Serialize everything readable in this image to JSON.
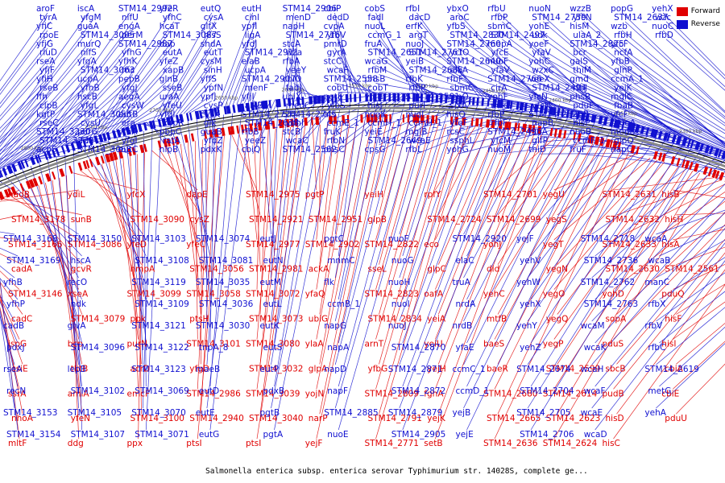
{
  "caption": "Salmonella enterica subsp. enterica serovar Typhimurium str. 14028S, complete ge...",
  "legend": [
    {
      "label": "Forward",
      "color": "#e00000"
    },
    {
      "label": "Reverse",
      "color": "#1010d0"
    }
  ],
  "colors": {
    "forward": "#e00000",
    "reverse": "#1010d0"
  },
  "axis": {
    "range_kbp": [
      2200,
      2900
    ],
    "tick_labels": [
      "2900 kbp",
      "2850 kbp",
      "2800 kbp",
      "2750 kbp",
      "2700 kbp",
      "2650 kbp",
      "2600 kbp",
      "2550 kbp",
      "2500 kbp",
      "2450 kbp",
      "2400 kbp",
      "2350 kbp",
      "2300 kbp",
      "2250 kbp",
      "2200 kbp"
    ]
  },
  "reverse_genes": [
    "aroF",
    "tyrA",
    "yfiC",
    "rpoE",
    "yfjG",
    "rluD",
    "rseA",
    "yfjF",
    "yfiH",
    "rseB",
    "ffh",
    "clpB",
    "kgtP",
    "rseC",
    "STM14_3230",
    "STM14_3228",
    "acpS",
    "iscA",
    "yfgM",
    "guaA",
    "STM14_3005",
    "murQ",
    "nifS",
    "yfgA",
    "STM14_3063",
    "ucpA",
    "yfhB",
    "hscB",
    "yfgL",
    "STM14_3055",
    "cysU",
    "purG",
    "fdx",
    "STM14_3068",
    "STM14_2992",
    "nifU",
    "engA",
    "perM",
    "STM14_2987",
    "yfhG",
    "yfhK",
    "rnc",
    "pepB",
    "yfgJ",
    "aegA",
    "cysW",
    "eutB",
    "era",
    "yfhA",
    "yfgI",
    "eutC",
    "yfeR",
    "yfhC",
    "hcaT",
    "STM14_3087",
    "dap",
    "eutA",
    "yfeZ",
    "xapB",
    "glnB",
    "sseB",
    "uraA",
    "yfeU",
    "yfgI",
    "xapR",
    "pbpC",
    "ratA",
    "nlpB",
    "eutQ",
    "cysA",
    "glfX",
    "hisS",
    "shdA",
    "eutT",
    "cysM",
    "sinH",
    "yffS",
    "ypfN",
    "ypfJ",
    "cysP",
    "cysK",
    "glk",
    "guaB",
    "yfdZ",
    "pdxK",
    "eutH",
    "cinl",
    "ypfI",
    "ligA",
    "yfdJ",
    "STM14_2911",
    "elaB",
    "ucpA",
    "STM14_2907",
    "menF",
    "yfjI",
    "alkB",
    "STM14_2726",
    "STM14_2638",
    "rfbB",
    "yeeZ",
    "cbiQ",
    "STM14_2906",
    "menD",
    "napH",
    "STM14_2716",
    "stcA",
    "wza",
    "rfbA",
    "yeeY",
    "cbiO",
    "fadJ",
    "ubiX",
    "menC",
    "STM14_2745",
    "yohI",
    "stcB",
    "wcaC",
    "STM14_2562",
    "cbiP",
    "dedD",
    "cvpA",
    "yfbV",
    "pmrD",
    "gyrA",
    "stcC",
    "wcaF",
    "STM14_2558",
    "cobU",
    "pgtE",
    "yfbS",
    "ais",
    "ccmE_1",
    "fruK",
    "rfbN",
    "phsC",
    "cobS",
    "fadI",
    "nuoL",
    "ccmG_1",
    "fruA",
    "STM14_2651",
    "wcaG",
    "rfbM",
    "phsB",
    "cobT",
    "yfcB",
    "hisJ",
    "nuoK",
    "ccmH_1",
    "yeiE",
    "STM14_2649",
    "cpsG",
    "rfbI",
    "dacD",
    "erfK",
    "argT",
    "nuoJ",
    "STM14_2761",
    "yeiB",
    "STM14_2635",
    "rfbK",
    "rfbP",
    "STM14_2501",
    "purF",
    "nuoI",
    "ccmH_1",
    "mglB",
    "wcaE",
    "rfbL",
    "ybxO",
    "aroC",
    "yfbS",
    "STM14_2830",
    "STM14_2760",
    "ycfO",
    "STM14_2640",
    "alkA",
    "rfbF",
    "sbmC",
    "veeO",
    "sixA",
    "hisQ",
    "yfeF",
    "rcsC",
    "ssphL",
    "yohG",
    "rfbU",
    "rfbP",
    "sbmC",
    "STM14_2497",
    "mepA",
    "yfcE",
    "nuoF",
    "yfaV",
    "STM14_2766",
    "cirA",
    "yohF",
    "udk",
    "rfbP",
    "rfbF",
    "STM14_2496",
    "yfcM",
    "nuoM",
    "nuoN",
    "STM14_2759",
    "yohE",
    "udk",
    "yoeF",
    "yfaV",
    "yohC",
    "wzxC",
    "veeX",
    "STM14_2494",
    "yfcN",
    "yfcN",
    "STM14_2826",
    "napB",
    "rsuA",
    "glfP",
    "thiD",
    "wzzB",
    "yfcN",
    "hisM",
    "ulaA_2",
    "STM14_2825",
    "bcr",
    "galS",
    "thiM",
    "gmd",
    "rfbJ",
    "phsB",
    "pduF",
    "fabB",
    "hisP",
    "nuoB",
    "ccmF_1",
    "fruF",
    "popG",
    "STM14_2637",
    "wzb",
    "rfbH",
    "yfcF",
    "ncfA",
    "yfbB",
    "gInP",
    "ccmA_1",
    "yeiK",
    "mglC",
    "fbaB",
    "yfcF",
    "nuoA",
    "menB",
    "glpQ",
    "napC",
    "yehX",
    "wzc",
    "nuoC",
    "rfbD"
  ],
  "forward_genes": [
    "nadB",
    "STM14_3178",
    "STM14_3166",
    "cadA",
    "STM14_3146",
    "cadC",
    "ispG",
    "csiE",
    "ssrA",
    "nhoA",
    "mltF",
    "ydiL",
    "sunB",
    "STM14_3086",
    "gcvR",
    "xseA",
    "STM14_3079",
    "bcp",
    "tktB",
    "amiA",
    "yfeN",
    "ddg",
    "yfcX",
    "STM14_3090",
    "yfeD",
    "hmpA",
    "STM14_3099",
    "ppk",
    "purN",
    "acrD",
    "emcF",
    "STM14_3100",
    "ppx",
    "dapE",
    "cysZ",
    "yfeC",
    "STM14_3056",
    "STM14_3058",
    "ptsH",
    "STM14_3101",
    "yfgD",
    "STM14_2986",
    "STM14_2940",
    "ptsI",
    "STM14_2975",
    "STM14_2921",
    "STM14_2977",
    "STM14_2981",
    "STM14_3072",
    "STM14_3073",
    "STM14_3080",
    "STM14_3032",
    "STM14_3039",
    "STM14_3040",
    "ptsI",
    "pgtP",
    "STM14_2951",
    "STM14_2902",
    "ackA",
    "yfaQ",
    "ubiG",
    "ylaA",
    "glpA",
    "yojN",
    "narP",
    "yejF",
    "yeiH",
    "glpB",
    "STM14_2822",
    "sseL",
    "STM14_2823",
    "STM14_2834",
    "arnT",
    "yfbG",
    "STM14_2809",
    "STM14_2791",
    "STM14_2771",
    "rpfY",
    "STM14_2724",
    "eco",
    "glpC",
    "oafA",
    "yeiA",
    "yeiU",
    "yejH",
    "fghA",
    "yejK",
    "setB",
    "STM14_2701",
    "STM14_2699",
    "yohJ",
    "dld",
    "yehC",
    "mtfB",
    "baeS",
    "baeR",
    "STM14_2680",
    "STM14_2665",
    "STM14_2636",
    "yegU",
    "yegS",
    "yegT",
    "yegN",
    "yegO",
    "yegQ",
    "yegP",
    "STM14_2599",
    "STM14_2614",
    "STM14_2623",
    "STM14_2624",
    "STM14_2631",
    "STM14_2632",
    "STM14_2633",
    "STM14_2630",
    "yohD",
    "sopA",
    "pduS",
    "sbcB",
    "pudB",
    "hisD",
    "hisC",
    "hisB",
    "hisH",
    "hisA",
    "STM14_2561",
    "pduQ",
    "hisF",
    "hisI",
    "cbiA",
    "cbiE",
    "pduU"
  ],
  "lower_reverse_genes": [
    "STM14_3168",
    "STM14_3169",
    "yfhB",
    "yfhP",
    "cadB",
    "pdxJ",
    "rseA",
    "recN",
    "STM14_3153",
    "STM14_3154",
    "STM14_3150",
    "hscA",
    "recO",
    "ndk",
    "glvA",
    "STM14_3096",
    "lepB",
    "STM14_3102",
    "STM14_3105",
    "STM14_3107",
    "STM14_3103",
    "STM14_3108",
    "STM14_3119",
    "STM14_3109",
    "STM14_3121",
    "STM14_3122",
    "STM14_3123",
    "STM14_3069",
    "STM14_3070",
    "STM14_3071",
    "STM14_3074",
    "STM14_3081",
    "STM14_3035",
    "STM14_3036",
    "STM14_3030",
    "tnpA_8",
    "maeB",
    "eutD",
    "eutE",
    "eutG",
    "eutJ",
    "eutN",
    "eutM",
    "eutL",
    "eutK",
    "eutS",
    "eutP",
    "pdxB",
    "pgtB",
    "pgtA",
    "pgtC",
    "mnmC",
    "flk",
    "ccmB_1",
    "napG",
    "napA",
    "napD",
    "napF",
    "STM14_2885",
    "nuoE",
    "nuoF",
    "nuoG",
    "nuoH",
    "nuoI",
    "nuoJ",
    "STM14_2870",
    "STM14_2871",
    "STM14_2872",
    "STM14_2879",
    "STM14_2905",
    "STM14_2920",
    "elaC",
    "truA",
    "nrdA",
    "nrdB",
    "yfaE",
    "ccmC_1",
    "ccmD_1",
    "yejB",
    "yejE",
    "yejF",
    "yehV",
    "yehW",
    "yehX",
    "yehY",
    "yehZ",
    "STM14_2674",
    "STM14_2704",
    "STM14_2705",
    "STM14_2706",
    "STM14_2718",
    "STM14_2736",
    "STM14_2762",
    "STM14_2763",
    "wcaM",
    "wcaK",
    "wcaH",
    "wcaF",
    "wcaE",
    "wcaD",
    "wcaA",
    "wcaB",
    "manC",
    "rfbX",
    "rfbV",
    "rfbC",
    "STM14_2619",
    "metG",
    "yehA"
  ]
}
